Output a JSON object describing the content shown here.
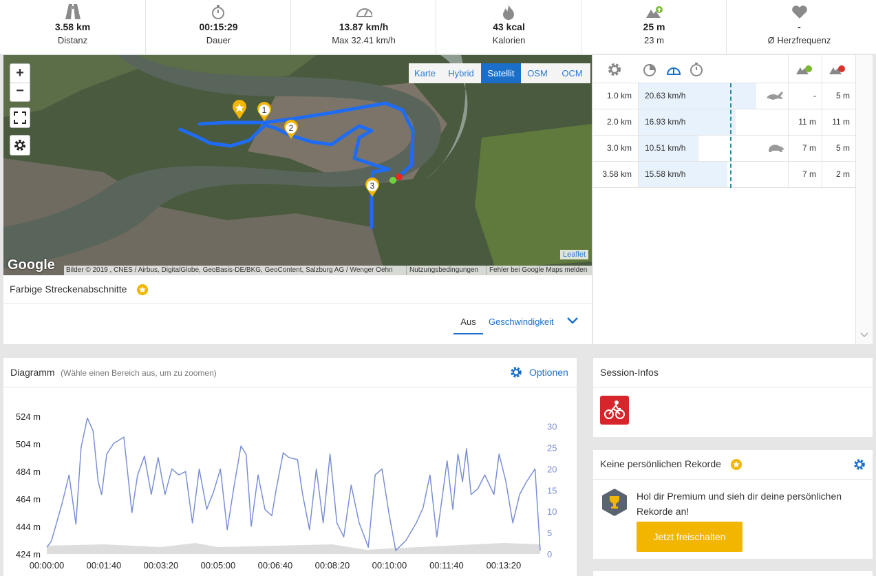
{
  "stats": [
    {
      "value": "3.58 km",
      "label": "Distanz"
    },
    {
      "value": "00:15:29",
      "label": "Dauer"
    },
    {
      "value": "13.87 km/h",
      "label": "Max 32.41 km/h"
    },
    {
      "value": "43 kcal",
      "label": "Kalorien"
    },
    {
      "value": "25 m",
      "label": "23 m"
    },
    {
      "value": "-",
      "label": "Ø Herzfrequenz"
    }
  ],
  "map": {
    "layers": [
      "Karte",
      "Hybrid",
      "Satellit",
      "OSM",
      "OCM"
    ],
    "active_layer": "Satellit",
    "zoom_in": "+",
    "zoom_out": "−",
    "markers": [
      "1",
      "2",
      "3"
    ],
    "logo": "Google",
    "attribution": "Bilder © 2019 , CNES / Airbus, DigitalGlobe, GeoBasis-DE/BKG, GeoContent, Salzburg AG / Wenger Oehn",
    "terms": "Nutzungsbedingungen",
    "report": "Fehler bei Google Maps melden",
    "leaflet": "Leaflet"
  },
  "sections": {
    "title": "Farbige Streckenabschnitte",
    "off": "Aus",
    "speed": "Geschwindigkeit"
  },
  "splits": {
    "rows": [
      [
        "1.0 km",
        "20.63 km/h",
        "-",
        "5 m"
      ],
      [
        "2.0 km",
        "16.93 km/h",
        "11 m",
        "11 m"
      ],
      [
        "3.0 km",
        "10.51 km/h",
        "7 m",
        "5 m"
      ],
      [
        "3.58 km",
        "15.58 km/h",
        "7 m",
        "2 m"
      ]
    ]
  },
  "diagram": {
    "options": "Optionen"
  },
  "chart_data": {
    "type": "line",
    "title": "Diagramm",
    "subtitle": "(Wähle einen Bereich aus, um zu zoomen)",
    "xlim": [
      0,
      864
    ],
    "xticks": [
      {
        "value": 0,
        "label": "00:00:00"
      },
      {
        "value": 100,
        "label": "00:01:40"
      },
      {
        "value": 200,
        "label": "00:03:20"
      },
      {
        "value": 300,
        "label": "00:05:00"
      },
      {
        "value": 400,
        "label": "00:06:40"
      },
      {
        "value": 500,
        "label": "00:08:20"
      },
      {
        "value": 600,
        "label": "00:10:00"
      },
      {
        "value": 700,
        "label": "00:11:40"
      },
      {
        "value": 800,
        "label": "00:13:20"
      }
    ],
    "ylim": [
      424,
      529
    ],
    "yticks": [
      {
        "value": 424,
        "label": "424 m"
      },
      {
        "value": 444,
        "label": "444 m"
      },
      {
        "value": 464,
        "label": "464 m"
      },
      {
        "value": 484,
        "label": "484 m"
      },
      {
        "value": 504,
        "label": "504 m"
      },
      {
        "value": 524,
        "label": "524 m"
      }
    ],
    "y2lim": [
      0,
      34
    ],
    "y2ticks": [
      0,
      5,
      10,
      15,
      20,
      25,
      30
    ],
    "series": [
      {
        "color": "#7b8fd6",
        "axis": "y2",
        "x": [
          0,
          8,
          27,
          39,
          51,
          60,
          71,
          81,
          90,
          96,
          105,
          117,
          129,
          135,
          142,
          149,
          159,
          171,
          183,
          195,
          207,
          219,
          231,
          243,
          255,
          267,
          280,
          292,
          304,
          316,
          328,
          340,
          349,
          358,
          370,
          382,
          394,
          402,
          414,
          424,
          439,
          448,
          460,
          472,
          484,
          496,
          508,
          520,
          533,
          547,
          563,
          575,
          587,
          599,
          611,
          629,
          647,
          659,
          671,
          683,
          701,
          711,
          720,
          728,
          735,
          743,
          755,
          767,
          783,
          792,
          804,
          816,
          828,
          840,
          855,
          864
        ],
        "values": [
          1.6,
          3,
          12,
          18.6,
          7,
          25,
          32,
          29,
          17,
          14,
          23.5,
          26,
          27,
          27.5,
          18.6,
          9.7,
          18.6,
          23,
          14,
          22.7,
          14,
          20,
          18.6,
          19.4,
          7.3,
          20,
          10.5,
          14.6,
          20,
          5.7,
          16,
          25.4,
          23.5,
          6.5,
          18.6,
          10.5,
          9,
          15.4,
          23.8,
          22.7,
          22.2,
          14,
          5.7,
          20,
          7.3,
          23.5,
          7.3,
          4,
          16.2,
          7.3,
          1.6,
          18.6,
          20,
          9.7,
          0.8,
          3.2,
          7.3,
          10.9,
          18.6,
          4,
          21.9,
          10.5,
          23.5,
          17,
          24.8,
          14,
          15.4,
          18.6,
          14,
          23.5,
          17,
          7.3,
          14,
          17,
          20,
          0.8
        ]
      },
      {
        "color": "#dddddd",
        "axis": "y",
        "x": [
          0,
          100,
          200,
          260,
          300,
          400,
          500,
          560,
          600,
          700,
          800,
          864
        ],
        "values": [
          430,
          431,
          429,
          432,
          429,
          430,
          431,
          427,
          428,
          430,
          432,
          431
        ]
      }
    ]
  },
  "session": {
    "title": "Session-Infos"
  },
  "records": {
    "title": "Keine persönlichen Rekorde",
    "text": "Hol dir Premium und sieh dir deine persönlichen Rekorde an!",
    "button": "Jetzt freischalten"
  }
}
